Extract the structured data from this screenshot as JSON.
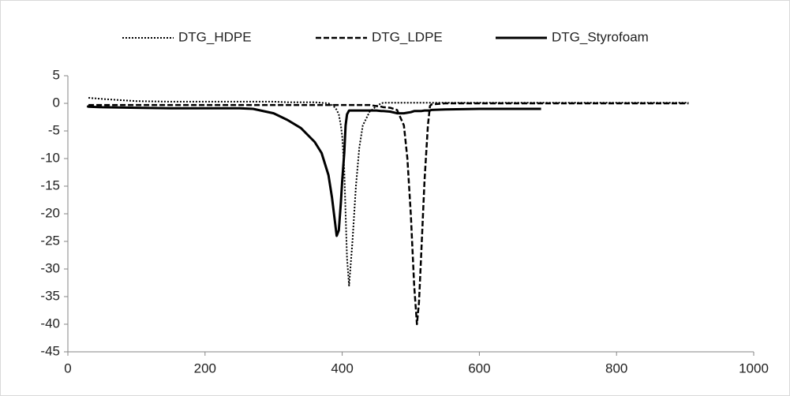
{
  "chart_data": {
    "type": "line",
    "x": [
      28,
      30,
      50,
      100,
      150,
      200,
      250,
      270,
      300,
      320,
      340,
      360,
      370,
      380,
      385,
      390,
      392,
      395,
      398,
      400,
      403,
      405,
      407,
      410,
      415,
      420,
      425,
      430,
      440,
      450,
      457,
      460,
      470,
      480,
      490,
      495,
      500,
      505,
      509,
      512,
      515,
      520,
      525,
      528,
      530,
      550,
      600,
      650,
      690,
      700,
      750,
      800,
      850,
      900,
      905
    ],
    "series": [
      {
        "name": "DTG_HDPE",
        "color": "#000000",
        "line_style": "dotted",
        "values": [
          null,
          1.0,
          0.8,
          0.4,
          0.3,
          0.3,
          0.3,
          0.3,
          0.3,
          0.2,
          0.2,
          0.2,
          0.1,
          0,
          -0.3,
          -0.8,
          -1.2,
          -2,
          -4,
          -6,
          -12,
          -20,
          -28,
          -33,
          -25,
          -15,
          -8,
          -4,
          -1.5,
          -0.5,
          0,
          0.1,
          0.1,
          0.1,
          0.1,
          0.1,
          0.1,
          0.1,
          0.1,
          0.1,
          0.1,
          0.1,
          0.1,
          0.1,
          0.1,
          0.1,
          0.1,
          0.1,
          0.1,
          0.1,
          0.1,
          0.1,
          0.1,
          0.1,
          0.1
        ]
      },
      {
        "name": "DTG_LDPE",
        "color": "#000000",
        "line_style": "dashed",
        "values": [
          null,
          -0.3,
          -0.3,
          -0.3,
          -0.3,
          -0.3,
          -0.3,
          -0.3,
          -0.3,
          -0.3,
          -0.3,
          -0.3,
          -0.3,
          -0.3,
          -0.3,
          -0.3,
          -0.3,
          -0.3,
          -0.3,
          -0.3,
          -0.3,
          -0.3,
          -0.3,
          -0.3,
          -0.3,
          -0.3,
          -0.3,
          -0.3,
          -0.3,
          -0.5,
          -0.6,
          -0.7,
          -0.8,
          -1.2,
          -4,
          -10,
          -20,
          -33,
          -40,
          -36,
          -28,
          -14,
          -4,
          -0.5,
          -0.2,
          0,
          0,
          0,
          0,
          0,
          0,
          0,
          0,
          0,
          0
        ]
      },
      {
        "name": "DTG_Styrofoam",
        "color": "#000000",
        "line_style": "solid",
        "values": [
          -0.5,
          -0.6,
          -0.7,
          -0.8,
          -0.9,
          -0.9,
          -0.9,
          -1,
          -1.8,
          -3,
          -4.5,
          -7,
          -9,
          -13,
          -17,
          -22,
          -24,
          -23,
          -18,
          -14,
          -9,
          -4,
          -2,
          -1.3,
          -1.3,
          -1.3,
          -1.3,
          -1.3,
          -1.3,
          -1.3,
          -1.4,
          -1.4,
          -1.5,
          -1.8,
          -1.8,
          -1.7,
          -1.6,
          -1.4,
          -1.4,
          -1.4,
          -1.4,
          -1.3,
          -1.3,
          -1.3,
          -1.2,
          -1.1,
          -1,
          -1,
          -1,
          null,
          null,
          null,
          null,
          null,
          null
        ]
      }
    ],
    "xlim": [
      0,
      1000
    ],
    "xticks": [
      0,
      200,
      400,
      600,
      800,
      1000
    ],
    "ylim": [
      -45,
      5
    ],
    "yticks": [
      -45,
      -40,
      -35,
      -30,
      -25,
      -20,
      -15,
      -10,
      -5,
      0,
      5
    ],
    "grid": false,
    "legend": "top"
  }
}
